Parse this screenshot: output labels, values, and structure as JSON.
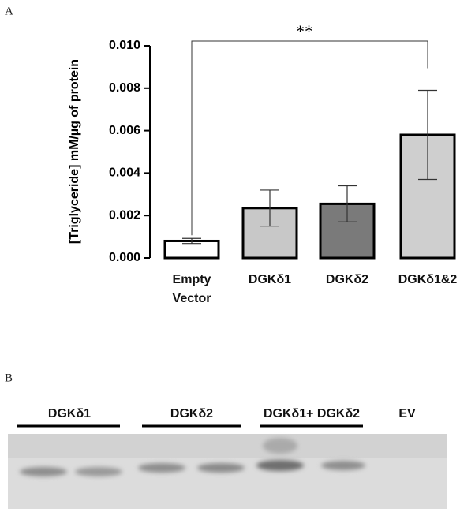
{
  "panels": [
    "A",
    "B"
  ],
  "chart_data": {
    "type": "bar",
    "y_label": "[Triglyceride] mM/µg of protein",
    "categories": [
      "Empty Vector",
      "DGKδ1",
      "DGKδ2",
      "DGKδ1&2"
    ],
    "values": [
      0.0008,
      0.00235,
      0.00255,
      0.0058
    ],
    "errors": [
      0.00012,
      0.00085,
      0.00085,
      0.0021
    ],
    "colors": [
      "#ffffff",
      "#c8c8c8",
      "#7a7a7a",
      "#cfcfcf"
    ],
    "ylim": [
      0,
      0.01
    ],
    "yticks": [
      {
        "value": 0,
        "label": "0.000"
      },
      {
        "value": 0.002,
        "label": "0.002"
      },
      {
        "value": 0.004,
        "label": "0.004"
      },
      {
        "value": 0.006,
        "label": "0.006"
      },
      {
        "value": 0.008,
        "label": "0.008"
      },
      {
        "value": 0.01,
        "label": "0.010"
      }
    ],
    "annotation": "**"
  },
  "blot": {
    "lane_labels": [
      "DGKδ1",
      "DGKδ2",
      "DGKδ1+ DGKδ2",
      "EV"
    ]
  }
}
